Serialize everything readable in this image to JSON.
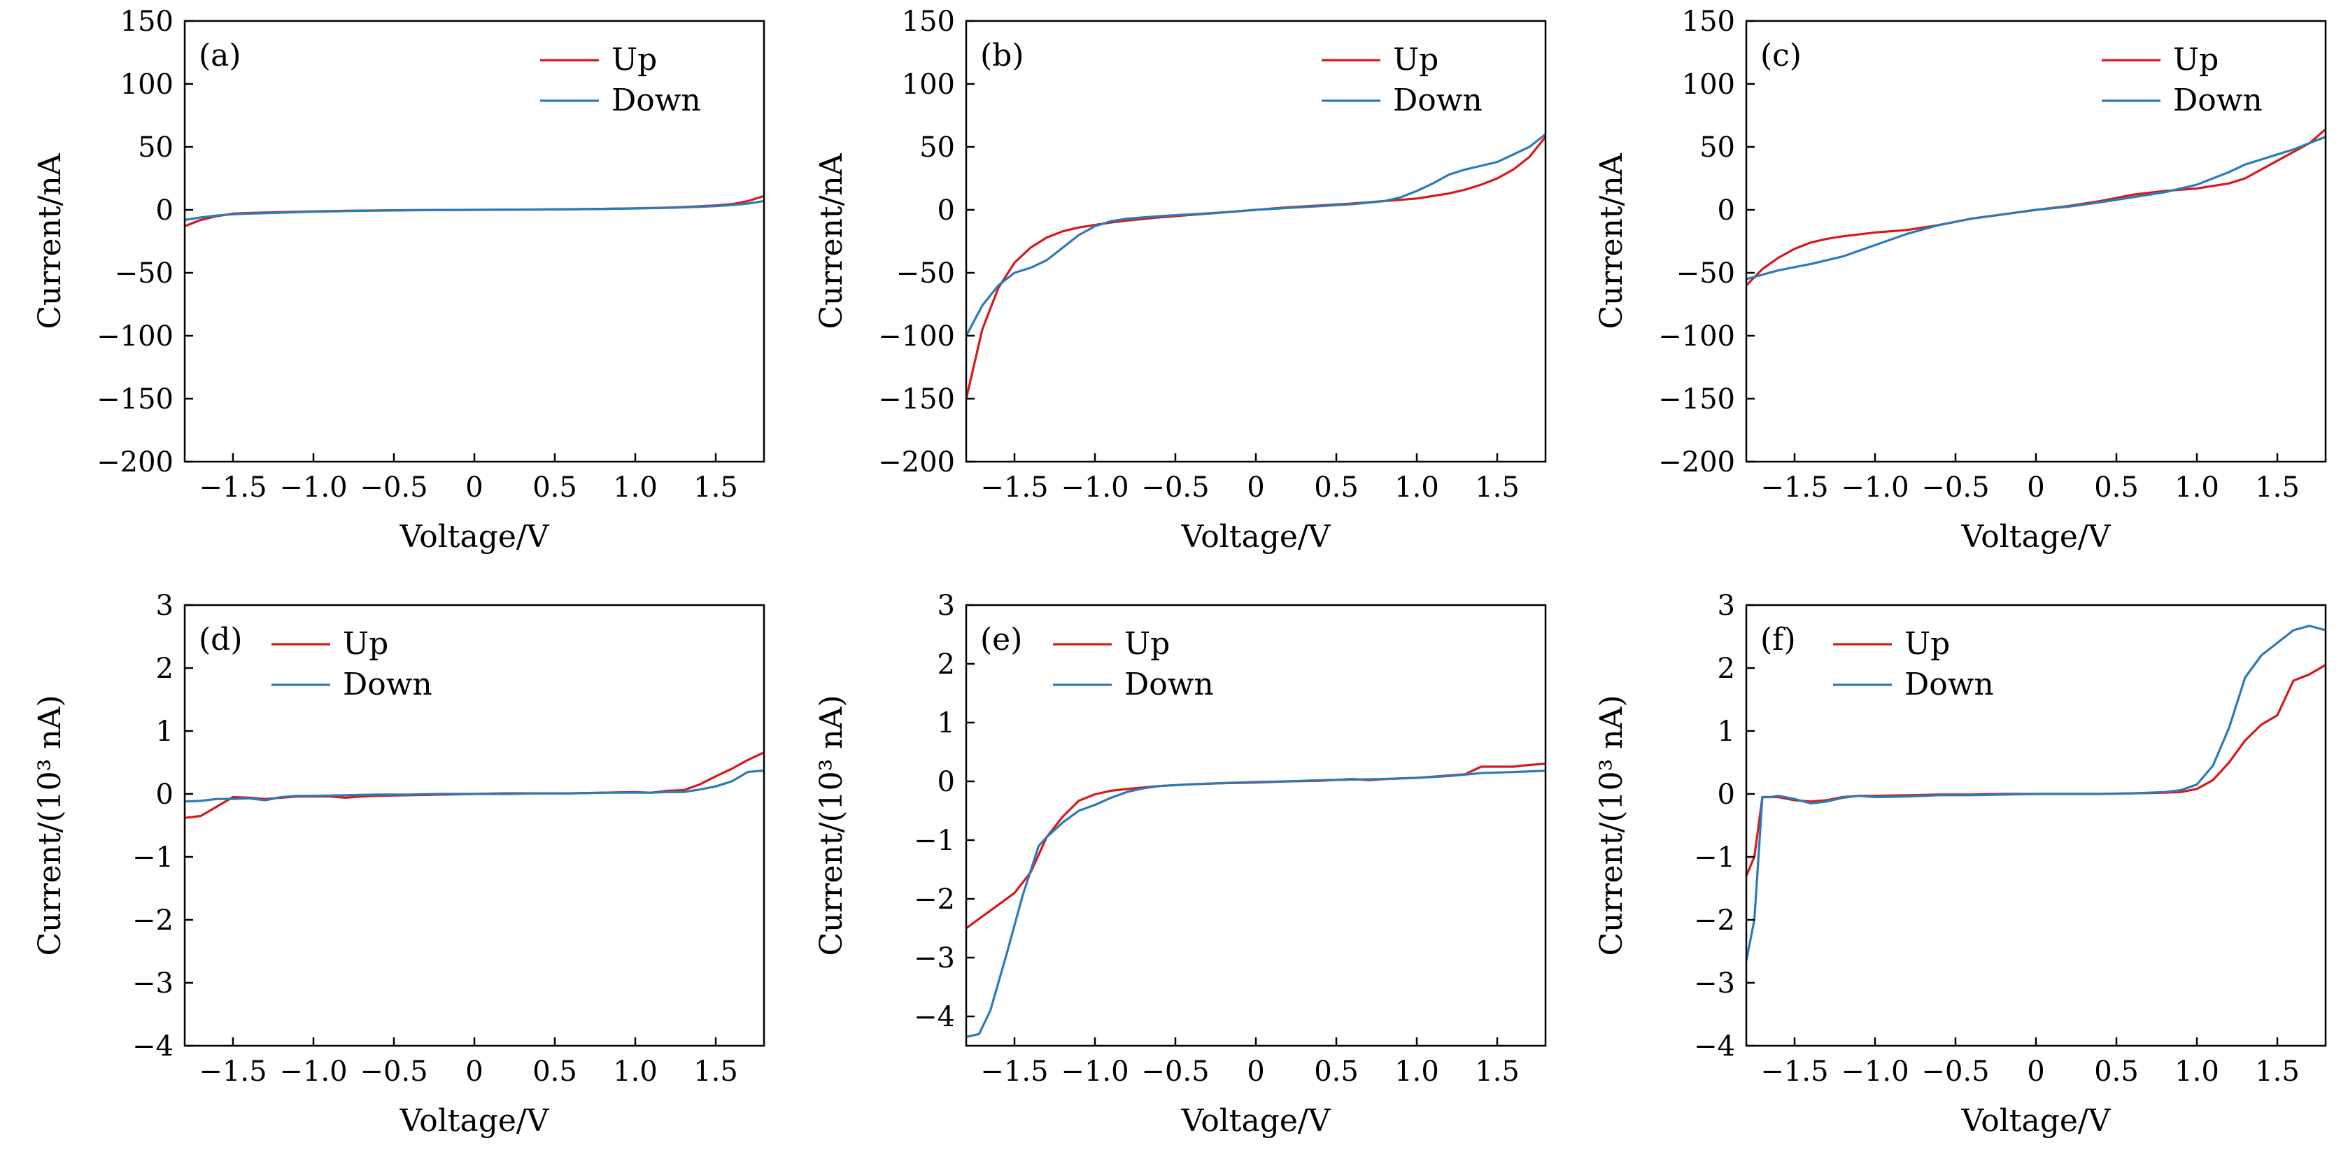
{
  "chart_data": [
    {
      "type": "line",
      "panel_label": "(a)",
      "xlabel": "Voltage/V",
      "ylabel": "Current/nA",
      "xlim": [
        -1.8,
        1.8
      ],
      "ylim": [
        -200,
        150
      ],
      "xticks": [
        -1.5,
        -1.0,
        -0.5,
        0,
        0.5,
        1.0,
        1.5
      ],
      "xtick_labels": [
        "−1.5",
        "−1.0",
        "−0.5",
        "0",
        "0.5",
        "1.0",
        "1.5"
      ],
      "yticks": [
        150,
        100,
        50,
        0,
        -50,
        -100,
        -150,
        -200
      ],
      "ytick_labels": [
        "150",
        "100",
        "50",
        "0",
        "−50",
        "−100",
        "−150",
        "−200"
      ],
      "legend_position": "top-right",
      "series": [
        {
          "name": "Up",
          "color": "#d7191c",
          "x": [
            -1.8,
            -1.7,
            -1.6,
            -1.5,
            -1.4,
            -1.2,
            -1.0,
            -0.8,
            -0.6,
            -0.4,
            -0.2,
            0,
            0.2,
            0.4,
            0.6,
            0.8,
            1.0,
            1.2,
            1.4,
            1.5,
            1.6,
            1.7,
            1.8
          ],
          "y": [
            -13,
            -8,
            -5,
            -3,
            -2.5,
            -1.8,
            -1.2,
            -0.8,
            -0.5,
            -0.3,
            -0.1,
            0,
            0.1,
            0.3,
            0.5,
            0.8,
            1.2,
            1.8,
            2.8,
            3.5,
            4.5,
            7,
            11
          ]
        },
        {
          "name": "Down",
          "color": "#2c7bb6",
          "x": [
            -1.8,
            -1.7,
            -1.6,
            -1.5,
            -1.4,
            -1.2,
            -1.0,
            -0.8,
            -0.6,
            -0.4,
            -0.2,
            0,
            0.2,
            0.4,
            0.6,
            0.8,
            1.0,
            1.2,
            1.4,
            1.5,
            1.6,
            1.7,
            1.8
          ],
          "y": [
            -8,
            -6,
            -4.5,
            -3.5,
            -3,
            -2.2,
            -1.5,
            -1.0,
            -0.6,
            -0.3,
            -0.1,
            0,
            0.1,
            0.3,
            0.5,
            0.8,
            1.1,
            1.6,
            2.4,
            3,
            3.8,
            5,
            7
          ]
        }
      ]
    },
    {
      "type": "line",
      "panel_label": "(b)",
      "xlabel": "Voltage/V",
      "ylabel": "Current/nA",
      "xlim": [
        -1.8,
        1.8
      ],
      "ylim": [
        -200,
        150
      ],
      "xticks": [
        -1.5,
        -1.0,
        -0.5,
        0,
        0.5,
        1.0,
        1.5
      ],
      "xtick_labels": [
        "−1.5",
        "−1.0",
        "−0.5",
        "0",
        "0.5",
        "1.0",
        "1.5"
      ],
      "yticks": [
        150,
        100,
        50,
        0,
        -50,
        -100,
        -150,
        -200
      ],
      "ytick_labels": [
        "150",
        "100",
        "50",
        "0",
        "−50",
        "−100",
        "−150",
        "−200"
      ],
      "legend_position": "top-right",
      "series": [
        {
          "name": "Up",
          "color": "#d7191c",
          "x": [
            -1.8,
            -1.7,
            -1.6,
            -1.5,
            -1.4,
            -1.3,
            -1.2,
            -1.1,
            -1.0,
            -0.9,
            -0.8,
            -0.6,
            -0.4,
            -0.2,
            0,
            0.2,
            0.4,
            0.6,
            0.8,
            1.0,
            1.1,
            1.2,
            1.3,
            1.4,
            1.5,
            1.6,
            1.7,
            1.8
          ],
          "y": [
            -150,
            -95,
            -62,
            -42,
            -30,
            -22,
            -17,
            -14,
            -12,
            -10,
            -8.5,
            -6,
            -4,
            -2,
            0,
            2,
            3.5,
            5,
            7,
            9,
            11,
            13,
            16,
            20,
            25,
            32,
            42,
            58
          ]
        },
        {
          "name": "Down",
          "color": "#2c7bb6",
          "x": [
            -1.8,
            -1.75,
            -1.7,
            -1.6,
            -1.5,
            -1.4,
            -1.3,
            -1.2,
            -1.1,
            -1.0,
            -0.9,
            -0.8,
            -0.6,
            -0.4,
            -0.2,
            0,
            0.2,
            0.4,
            0.6,
            0.8,
            0.9,
            1.0,
            1.1,
            1.2,
            1.3,
            1.4,
            1.5,
            1.6,
            1.7,
            1.8
          ],
          "y": [
            -100,
            -88,
            -76,
            -60,
            -50,
            -46,
            -40,
            -30,
            -20,
            -13,
            -9,
            -7,
            -5,
            -3.5,
            -2,
            0,
            1.5,
            3,
            4.5,
            7,
            10,
            15,
            21,
            28,
            32,
            35,
            38,
            44,
            50,
            60
          ]
        }
      ]
    },
    {
      "type": "line",
      "panel_label": "(c)",
      "xlabel": "Voltage/V",
      "ylabel": "Current/nA",
      "xlim": [
        -1.8,
        1.8
      ],
      "ylim": [
        -200,
        150
      ],
      "xticks": [
        -1.5,
        -1.0,
        -0.5,
        0,
        0.5,
        1.0,
        1.5
      ],
      "xtick_labels": [
        "−1.5",
        "−1.0",
        "−0.5",
        "0",
        "0.5",
        "1.0",
        "1.5"
      ],
      "yticks": [
        150,
        100,
        50,
        0,
        -50,
        -100,
        -150,
        -200
      ],
      "ytick_labels": [
        "150",
        "100",
        "50",
        "0",
        "−50",
        "−100",
        "−150",
        "−200"
      ],
      "legend_position": "top-right",
      "series": [
        {
          "name": "Up",
          "color": "#d7191c",
          "x": [
            -1.8,
            -1.7,
            -1.6,
            -1.5,
            -1.4,
            -1.3,
            -1.2,
            -1.0,
            -0.8,
            -0.6,
            -0.4,
            -0.2,
            0,
            0.2,
            0.4,
            0.6,
            0.8,
            1.0,
            1.1,
            1.2,
            1.3,
            1.4,
            1.5,
            1.6,
            1.7,
            1.8
          ],
          "y": [
            -60,
            -47,
            -38,
            -31,
            -26,
            -23,
            -21,
            -18,
            -16,
            -12,
            -7,
            -3.5,
            0,
            3,
            7,
            12,
            15,
            17,
            19,
            21,
            25,
            32,
            39,
            46,
            53,
            64
          ]
        },
        {
          "name": "Down",
          "color": "#2c7bb6",
          "x": [
            -1.8,
            -1.6,
            -1.4,
            -1.2,
            -1.0,
            -0.8,
            -0.6,
            -0.4,
            -0.2,
            0,
            0.2,
            0.4,
            0.6,
            0.8,
            1.0,
            1.1,
            1.2,
            1.3,
            1.4,
            1.5,
            1.6,
            1.7,
            1.8
          ],
          "y": [
            -55,
            -48,
            -43,
            -37,
            -28,
            -19,
            -12,
            -7,
            -3.5,
            0,
            2.5,
            6,
            10,
            14,
            20,
            25,
            30,
            36,
            40,
            44,
            48,
            53,
            58
          ]
        }
      ]
    },
    {
      "type": "line",
      "panel_label": "(d)",
      "xlabel": "Voltage/V",
      "ylabel": "Current/(10³ nA)",
      "xlim": [
        -1.8,
        1.8
      ],
      "ylim": [
        -4,
        3
      ],
      "xticks": [
        -1.5,
        -1.0,
        -0.5,
        0,
        0.5,
        1.0,
        1.5
      ],
      "xtick_labels": [
        "−1.5",
        "−1.0",
        "−0.5",
        "0",
        "0.5",
        "1.0",
        "1.5"
      ],
      "yticks": [
        3,
        2,
        1,
        0,
        -1,
        -2,
        -3,
        -4
      ],
      "ytick_labels": [
        "3",
        "2",
        "1",
        "0",
        "−1",
        "−2",
        "−3",
        "−4"
      ],
      "legend_position": "top-left",
      "series": [
        {
          "name": "Up",
          "color": "#d7191c",
          "x": [
            -1.8,
            -1.7,
            -1.6,
            -1.5,
            -1.4,
            -1.3,
            -1.2,
            -1.1,
            -1.0,
            -0.9,
            -0.8,
            -0.7,
            -0.6,
            -0.4,
            -0.2,
            0,
            0.2,
            0.4,
            0.6,
            0.8,
            1.0,
            1.1,
            1.2,
            1.3,
            1.4,
            1.5,
            1.6,
            1.7,
            1.8
          ],
          "y": [
            -0.38,
            -0.35,
            -0.2,
            -0.05,
            -0.06,
            -0.08,
            -0.06,
            -0.04,
            -0.04,
            -0.04,
            -0.06,
            -0.04,
            -0.03,
            -0.02,
            -0.01,
            0,
            0.01,
            0.01,
            0.01,
            0.02,
            0.03,
            0.02,
            0.05,
            0.06,
            0.15,
            0.28,
            0.4,
            0.54,
            0.66
          ]
        },
        {
          "name": "Down",
          "color": "#2c7bb6",
          "x": [
            -1.8,
            -1.7,
            -1.6,
            -1.5,
            -1.4,
            -1.3,
            -1.2,
            -1.1,
            -1.0,
            -0.8,
            -0.6,
            -0.4,
            -0.2,
            0,
            0.2,
            0.4,
            0.6,
            0.8,
            1.0,
            1.1,
            1.2,
            1.3,
            1.4,
            1.5,
            1.6,
            1.7,
            1.8
          ],
          "y": [
            -0.12,
            -0.11,
            -0.08,
            -0.08,
            -0.07,
            -0.1,
            -0.05,
            -0.03,
            -0.03,
            -0.02,
            -0.01,
            -0.01,
            0,
            0,
            0,
            0.01,
            0.01,
            0.02,
            0.02,
            0.02,
            0.03,
            0.03,
            0.07,
            0.12,
            0.2,
            0.35,
            0.37
          ]
        }
      ]
    },
    {
      "type": "line",
      "panel_label": "(e)",
      "xlabel": "Voltage/V",
      "ylabel": "Current/(10³ nA)",
      "xlim": [
        -1.8,
        1.8
      ],
      "ylim": [
        -4.5,
        3
      ],
      "xticks": [
        -1.5,
        -1.0,
        -0.5,
        0,
        0.5,
        1.0,
        1.5
      ],
      "xtick_labels": [
        "−1.5",
        "−1.0",
        "−0.5",
        "0",
        "0.5",
        "1.0",
        "1.5"
      ],
      "yticks": [
        3,
        2,
        1,
        0,
        -1,
        -2,
        -3,
        -4
      ],
      "ytick_labels": [
        "3",
        "2",
        "1",
        "0",
        "−1",
        "−2",
        "−3",
        "−4"
      ],
      "legend_position": "top-left",
      "series": [
        {
          "name": "Up",
          "color": "#d7191c",
          "x": [
            -1.8,
            -1.7,
            -1.6,
            -1.5,
            -1.4,
            -1.3,
            -1.2,
            -1.1,
            -1.0,
            -0.9,
            -0.8,
            -0.6,
            -0.4,
            -0.2,
            0,
            0.2,
            0.4,
            0.6,
            0.7,
            0.8,
            1.0,
            1.2,
            1.3,
            1.4,
            1.5,
            1.6,
            1.7,
            1.8
          ],
          "y": [
            -2.5,
            -2.3,
            -2.1,
            -1.9,
            -1.55,
            -0.95,
            -0.6,
            -0.33,
            -0.22,
            -0.16,
            -0.13,
            -0.08,
            -0.05,
            -0.03,
            -0.02,
            0,
            0.01,
            0.04,
            0.02,
            0.04,
            0.06,
            0.1,
            0.12,
            0.25,
            0.25,
            0.25,
            0.28,
            0.3
          ]
        },
        {
          "name": "Down",
          "color": "#2c7bb6",
          "x": [
            -1.8,
            -1.72,
            -1.65,
            -1.55,
            -1.45,
            -1.35,
            -1.3,
            -1.2,
            -1.1,
            -1.0,
            -0.9,
            -0.8,
            -0.7,
            -0.6,
            -0.4,
            -0.2,
            0,
            0.2,
            0.4,
            0.6,
            0.8,
            1.0,
            1.2,
            1.4,
            1.6,
            1.8
          ],
          "y": [
            -4.35,
            -4.3,
            -3.9,
            -2.95,
            -1.95,
            -1.1,
            -0.95,
            -0.7,
            -0.5,
            -0.4,
            -0.28,
            -0.18,
            -0.12,
            -0.08,
            -0.05,
            -0.03,
            -0.01,
            0,
            0.02,
            0.03,
            0.04,
            0.06,
            0.09,
            0.14,
            0.16,
            0.18
          ]
        }
      ]
    },
    {
      "type": "line",
      "panel_label": "(f)",
      "xlabel": "Voltage/V",
      "ylabel": "Current/(10³ nA)",
      "xlim": [
        -1.8,
        1.8
      ],
      "ylim": [
        -4,
        3
      ],
      "xticks": [
        -1.5,
        -1.0,
        -0.5,
        0,
        0.5,
        1.0,
        1.5
      ],
      "xtick_labels": [
        "−1.5",
        "−1.0",
        "−0.5",
        "0",
        "0.5",
        "1.0",
        "1.5"
      ],
      "yticks": [
        3,
        2,
        1,
        0,
        -1,
        -2,
        -3,
        -4
      ],
      "ytick_labels": [
        "3",
        "2",
        "1",
        "0",
        "−1",
        "−2",
        "−3",
        "−4"
      ],
      "legend_position": "top-left",
      "series": [
        {
          "name": "Up",
          "color": "#d7191c",
          "x": [
            -1.8,
            -1.75,
            -1.7,
            -1.6,
            -1.5,
            -1.4,
            -1.3,
            -1.2,
            -1.1,
            -1.0,
            -0.8,
            -0.6,
            -0.4,
            -0.2,
            0,
            0.2,
            0.4,
            0.6,
            0.8,
            0.9,
            1.0,
            1.1,
            1.2,
            1.3,
            1.4,
            1.5,
            1.6,
            1.7,
            1.8
          ],
          "y": [
            -1.3,
            -1.0,
            -0.05,
            -0.05,
            -0.1,
            -0.12,
            -0.1,
            -0.05,
            -0.03,
            -0.03,
            -0.02,
            -0.01,
            -0.01,
            0,
            0,
            0,
            0,
            0.01,
            0.02,
            0.03,
            0.08,
            0.22,
            0.5,
            0.85,
            1.1,
            1.25,
            1.8,
            1.9,
            2.05
          ]
        },
        {
          "name": "Down",
          "color": "#2c7bb6",
          "x": [
            -1.8,
            -1.75,
            -1.7,
            -1.65,
            -1.6,
            -1.5,
            -1.4,
            -1.3,
            -1.2,
            -1.1,
            -1.0,
            -0.8,
            -0.6,
            -0.4,
            -0.2,
            0,
            0.2,
            0.4,
            0.6,
            0.8,
            0.9,
            1.0,
            1.1,
            1.2,
            1.3,
            1.4,
            1.5,
            1.6,
            1.7,
            1.8
          ],
          "y": [
            -2.65,
            -2.0,
            -0.05,
            -0.05,
            -0.03,
            -0.08,
            -0.15,
            -0.12,
            -0.06,
            -0.03,
            -0.05,
            -0.04,
            -0.02,
            -0.02,
            -0.01,
            0,
            0,
            0,
            0.01,
            0.03,
            0.06,
            0.15,
            0.45,
            1.05,
            1.85,
            2.2,
            2.4,
            2.6,
            2.67,
            2.6
          ]
        }
      ]
    }
  ]
}
